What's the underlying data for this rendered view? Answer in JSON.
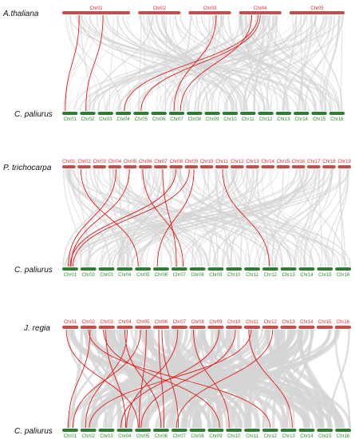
{
  "colors": {
    "top_chromosome": "#c0504d",
    "top_label": "#d83030",
    "bottom_chromosome": "#2e7d32",
    "bottom_label": "#2e8b2e",
    "background_link": "#d4d4d4",
    "highlight_link": "#e41a1c"
  },
  "panels": [
    {
      "top_species": "A.thaliana",
      "bottom_species": "C. paliurus",
      "top_chromosomes": [
        "Chr01",
        "Chr02",
        "Chr03",
        "Chr04",
        "Chr05"
      ],
      "bottom_chromosomes": [
        "Chr01",
        "Chr02",
        "Chr03",
        "Chr04",
        "Chr05",
        "Chr06",
        "Chr07",
        "Chr08",
        "Chr09",
        "Chr10",
        "Chr11",
        "Chr12",
        "Chr13",
        "Chr14",
        "Chr15",
        "Chr16"
      ],
      "highlight_links": [
        [
          0,
          0
        ],
        [
          0,
          1
        ],
        [
          3,
          3
        ],
        [
          3,
          6
        ],
        [
          2,
          6
        ],
        [
          3,
          4
        ]
      ]
    },
    {
      "top_species": "P. trichocarpa",
      "bottom_species": "C. paliurus",
      "top_chromosomes": [
        "Chr01",
        "Chr02",
        "Chr03",
        "Chr04",
        "Chr05",
        "Chr06",
        "Chr07",
        "Chr08",
        "Chr09",
        "Chr10",
        "Chr11",
        "Chr12",
        "Chr13",
        "Chr14",
        "Chr15",
        "Chr16",
        "Chr17",
        "Chr18",
        "Chr19"
      ],
      "bottom_chromosomes": [
        "Chr01",
        "Chr02",
        "Chr03",
        "Chr04",
        "Chr05",
        "Chr06",
        "Chr07",
        "Chr08",
        "Chr09",
        "Chr10",
        "Chr11",
        "Chr12",
        "Chr13",
        "Chr14",
        "Chr15",
        "Chr16"
      ],
      "highlight_links": [
        [
          1,
          4
        ],
        [
          3,
          0
        ],
        [
          4,
          0
        ],
        [
          5,
          6
        ],
        [
          6,
          6
        ],
        [
          7,
          0
        ],
        [
          8,
          0
        ],
        [
          8,
          5
        ],
        [
          10,
          11
        ]
      ]
    },
    {
      "top_species": "J. regia",
      "bottom_species": "C. paliurus",
      "top_chromosomes": [
        "Chr01",
        "Chr02",
        "Chr03",
        "Chr04",
        "Chr05",
        "Chr06",
        "Chr07",
        "Chr08",
        "Chr09",
        "Chr10",
        "Chr11",
        "Chr12",
        "Chr13",
        "Chr14",
        "Chr15",
        "Chr16"
      ],
      "bottom_chromosomes": [
        "Chr01",
        "Chr02",
        "Chr03",
        "Chr04",
        "Chr05",
        "Chr06",
        "Chr07",
        "Chr08",
        "Chr09",
        "Chr10",
        "Chr11",
        "Chr12",
        "Chr13",
        "Chr14",
        "Chr15",
        "Chr16"
      ],
      "highlight_links": [
        [
          0,
          4
        ],
        [
          1,
          0
        ],
        [
          2,
          3
        ],
        [
          2,
          8
        ],
        [
          3,
          1
        ],
        [
          3,
          5
        ],
        [
          4,
          0
        ],
        [
          4,
          4
        ],
        [
          5,
          6
        ],
        [
          6,
          3
        ],
        [
          7,
          9
        ],
        [
          9,
          4
        ],
        [
          10,
          1
        ],
        [
          10,
          12
        ],
        [
          11,
          6
        ],
        [
          1,
          11
        ],
        [
          5,
          5
        ],
        [
          8,
          3
        ]
      ]
    }
  ]
}
